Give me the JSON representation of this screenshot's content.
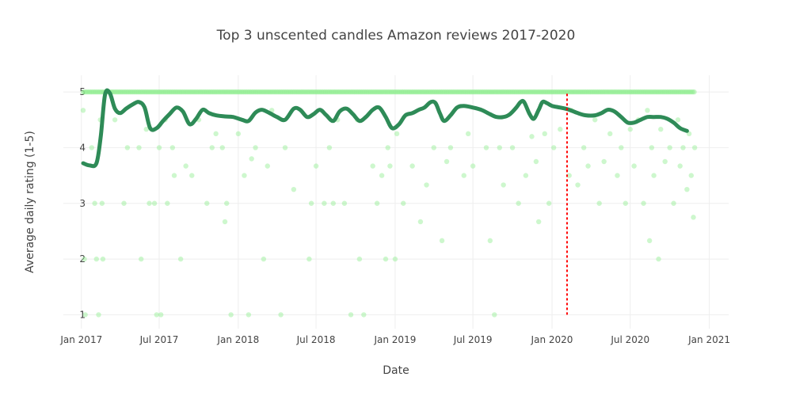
{
  "chart_data": {
    "type": "scatter",
    "title": "Top 3 unscented candles Amazon reviews 2017-2020",
    "xlabel": "Date",
    "ylabel": "Average daily rating (1-5)",
    "xlim": [
      "2016-11-20",
      "2021-02-15"
    ],
    "ylim": [
      0.75,
      5.3
    ],
    "grid": true,
    "x_ticks": [
      "2017-01-01",
      "2017-07-01",
      "2018-01-01",
      "2018-07-01",
      "2019-01-01",
      "2019-07-01",
      "2020-01-01",
      "2020-07-01",
      "2021-01-01"
    ],
    "x_tick_labels": [
      "Jan 2017",
      "Jul 2017",
      "Jan 2018",
      "Jul 2018",
      "Jan 2019",
      "Jul 2019",
      "Jan 2020",
      "Jul 2020",
      "Jan 2021"
    ],
    "y_ticks": [
      1,
      2,
      3,
      4,
      5
    ],
    "y_tick_labels": [
      "1",
      "2",
      "3",
      "4",
      "5"
    ],
    "colors": {
      "points": "#90ee90",
      "trend": "#2e8b57",
      "vline": "#ff0000",
      "text": "#444444"
    },
    "series": [
      {
        "type": "scatter",
        "x_range": [
          "2017-01-05",
          "2020-11-28"
        ],
        "y_levels": [
          1,
          2,
          3,
          4,
          5
        ],
        "note_density": "one point per daily average; many points at 5.0",
        "points": [
          [
            "2017-01-05",
            4.67
          ],
          [
            "2017-01-08",
            2
          ],
          [
            "2017-01-10",
            1
          ],
          [
            "2017-01-25",
            4
          ],
          [
            "2017-02-01",
            3
          ],
          [
            "2017-02-05",
            2
          ],
          [
            "2017-02-10",
            1
          ],
          [
            "2017-02-14",
            4.5
          ],
          [
            "2017-02-18",
            3
          ],
          [
            "2017-02-20",
            2
          ],
          [
            "2017-03-20",
            4.5
          ],
          [
            "2017-04-10",
            3
          ],
          [
            "2017-04-18",
            4
          ],
          [
            "2017-05-15",
            4
          ],
          [
            "2017-05-20",
            2
          ],
          [
            "2017-06-01",
            4.33
          ],
          [
            "2017-06-08",
            3
          ],
          [
            "2017-06-20",
            3
          ],
          [
            "2017-06-25",
            1
          ],
          [
            "2017-07-01",
            4
          ],
          [
            "2017-07-05",
            1
          ],
          [
            "2017-07-15",
            4.5
          ],
          [
            "2017-07-20",
            3
          ],
          [
            "2017-08-01",
            4
          ],
          [
            "2017-08-05",
            3.5
          ],
          [
            "2017-08-20",
            2
          ],
          [
            "2017-09-01",
            3.67
          ],
          [
            "2017-09-15",
            3.5
          ],
          [
            "2017-10-01",
            4.5
          ],
          [
            "2017-10-20",
            3
          ],
          [
            "2017-11-01",
            4
          ],
          [
            "2017-11-10",
            4.25
          ],
          [
            "2017-11-25",
            4
          ],
          [
            "2017-12-01",
            2.67
          ],
          [
            "2017-12-05",
            3
          ],
          [
            "2017-12-15",
            1
          ],
          [
            "2018-01-01",
            4.25
          ],
          [
            "2018-01-15",
            3.5
          ],
          [
            "2018-01-25",
            1
          ],
          [
            "2018-02-01",
            3.8
          ],
          [
            "2018-02-10",
            4
          ],
          [
            "2018-03-01",
            2
          ],
          [
            "2018-03-10",
            3.67
          ],
          [
            "2018-03-20",
            4.67
          ],
          [
            "2018-04-10",
            1
          ],
          [
            "2018-04-20",
            4
          ],
          [
            "2018-05-10",
            3.25
          ],
          [
            "2018-06-15",
            2
          ],
          [
            "2018-06-20",
            3
          ],
          [
            "2018-07-01",
            3.67
          ],
          [
            "2018-07-20",
            3
          ],
          [
            "2018-08-01",
            4
          ],
          [
            "2018-08-10",
            3
          ],
          [
            "2018-08-20",
            4.5
          ],
          [
            "2018-09-05",
            3
          ],
          [
            "2018-09-20",
            1
          ],
          [
            "2018-10-05",
            4.5
          ],
          [
            "2018-10-10",
            2
          ],
          [
            "2018-10-20",
            1
          ],
          [
            "2018-11-10",
            3.67
          ],
          [
            "2018-11-20",
            3
          ],
          [
            "2018-12-01",
            3.5
          ],
          [
            "2018-12-10",
            2
          ],
          [
            "2018-12-15",
            4
          ],
          [
            "2018-12-20",
            3.67
          ],
          [
            "2019-01-01",
            2
          ],
          [
            "2019-01-05",
            4.25
          ],
          [
            "2019-01-20",
            3
          ],
          [
            "2019-02-10",
            3.67
          ],
          [
            "2019-03-01",
            2.67
          ],
          [
            "2019-03-15",
            3.33
          ],
          [
            "2019-04-01",
            4
          ],
          [
            "2019-04-20",
            2.33
          ],
          [
            "2019-05-01",
            3.75
          ],
          [
            "2019-05-10",
            4
          ],
          [
            "2019-06-10",
            3.5
          ],
          [
            "2019-06-20",
            4.25
          ],
          [
            "2019-07-01",
            3.67
          ],
          [
            "2019-08-01",
            4
          ],
          [
            "2019-08-10",
            2.33
          ],
          [
            "2019-08-20",
            1
          ],
          [
            "2019-09-01",
            4
          ],
          [
            "2019-09-10",
            3.33
          ],
          [
            "2019-10-01",
            4
          ],
          [
            "2019-10-15",
            3
          ],
          [
            "2019-11-01",
            3.5
          ],
          [
            "2019-11-15",
            4.2
          ],
          [
            "2019-11-25",
            3.75
          ],
          [
            "2019-12-01",
            2.67
          ],
          [
            "2019-12-15",
            4.25
          ],
          [
            "2019-12-25",
            3
          ],
          [
            "2020-01-05",
            4
          ],
          [
            "2020-01-20",
            4.33
          ],
          [
            "2020-02-10",
            3.5
          ],
          [
            "2020-02-15",
            4.67
          ],
          [
            "2020-03-01",
            3.33
          ],
          [
            "2020-03-15",
            4
          ],
          [
            "2020-03-25",
            3.67
          ],
          [
            "2020-04-10",
            4.5
          ],
          [
            "2020-04-20",
            3
          ],
          [
            "2020-05-01",
            3.75
          ],
          [
            "2020-05-15",
            4.25
          ],
          [
            "2020-06-01",
            3.5
          ],
          [
            "2020-06-10",
            4
          ],
          [
            "2020-06-20",
            3
          ],
          [
            "2020-07-01",
            4.33
          ],
          [
            "2020-07-10",
            3.67
          ],
          [
            "2020-07-20",
            4.5
          ],
          [
            "2020-08-01",
            3
          ],
          [
            "2020-08-10",
            4.67
          ],
          [
            "2020-08-15",
            2.33
          ],
          [
            "2020-08-20",
            4
          ],
          [
            "2020-08-25",
            3.5
          ],
          [
            "2020-09-05",
            2
          ],
          [
            "2020-09-10",
            4.33
          ],
          [
            "2020-09-20",
            3.75
          ],
          [
            "2020-10-01",
            4
          ],
          [
            "2020-10-10",
            3
          ],
          [
            "2020-10-20",
            4.5
          ],
          [
            "2020-10-25",
            3.67
          ],
          [
            "2020-11-01",
            4
          ],
          [
            "2020-11-10",
            3.25
          ],
          [
            "2020-11-15",
            4.25
          ],
          [
            "2020-11-20",
            3.5
          ],
          [
            "2020-11-25",
            2.75
          ],
          [
            "2020-11-28",
            4
          ]
        ]
      },
      {
        "type": "line",
        "smoothed": true,
        "points": [
          [
            "2017-01-05",
            3.72
          ],
          [
            "2017-01-20",
            3.68
          ],
          [
            "2017-02-05",
            3.72
          ],
          [
            "2017-02-15",
            4.2
          ],
          [
            "2017-02-25",
            4.95
          ],
          [
            "2017-03-08",
            4.98
          ],
          [
            "2017-03-20",
            4.7
          ],
          [
            "2017-04-01",
            4.62
          ],
          [
            "2017-04-15",
            4.7
          ],
          [
            "2017-05-01",
            4.78
          ],
          [
            "2017-05-15",
            4.82
          ],
          [
            "2017-05-28",
            4.72
          ],
          [
            "2017-06-10",
            4.35
          ],
          [
            "2017-06-25",
            4.35
          ],
          [
            "2017-07-10",
            4.48
          ],
          [
            "2017-07-25",
            4.6
          ],
          [
            "2017-08-10",
            4.72
          ],
          [
            "2017-08-25",
            4.65
          ],
          [
            "2017-09-10",
            4.42
          ],
          [
            "2017-09-25",
            4.52
          ],
          [
            "2017-10-10",
            4.68
          ],
          [
            "2017-10-25",
            4.62
          ],
          [
            "2017-11-10",
            4.58
          ],
          [
            "2017-12-01",
            4.56
          ],
          [
            "2017-12-20",
            4.55
          ],
          [
            "2018-01-10",
            4.5
          ],
          [
            "2018-01-25",
            4.48
          ],
          [
            "2018-02-10",
            4.63
          ],
          [
            "2018-02-25",
            4.68
          ],
          [
            "2018-03-15",
            4.62
          ],
          [
            "2018-04-01",
            4.55
          ],
          [
            "2018-04-20",
            4.5
          ],
          [
            "2018-05-10",
            4.7
          ],
          [
            "2018-05-25",
            4.68
          ],
          [
            "2018-06-10",
            4.55
          ],
          [
            "2018-06-25",
            4.6
          ],
          [
            "2018-07-10",
            4.68
          ],
          [
            "2018-07-25",
            4.58
          ],
          [
            "2018-08-10",
            4.48
          ],
          [
            "2018-08-25",
            4.65
          ],
          [
            "2018-09-10",
            4.7
          ],
          [
            "2018-09-25",
            4.6
          ],
          [
            "2018-10-10",
            4.48
          ],
          [
            "2018-10-25",
            4.55
          ],
          [
            "2018-11-10",
            4.68
          ],
          [
            "2018-11-25",
            4.72
          ],
          [
            "2018-12-10",
            4.55
          ],
          [
            "2018-12-25",
            4.35
          ],
          [
            "2019-01-10",
            4.42
          ],
          [
            "2019-01-25",
            4.58
          ],
          [
            "2019-02-10",
            4.62
          ],
          [
            "2019-02-25",
            4.68
          ],
          [
            "2019-03-10",
            4.72
          ],
          [
            "2019-03-25",
            4.82
          ],
          [
            "2019-04-05",
            4.8
          ],
          [
            "2019-04-15",
            4.62
          ],
          [
            "2019-04-25",
            4.48
          ],
          [
            "2019-05-10",
            4.58
          ],
          [
            "2019-05-25",
            4.72
          ],
          [
            "2019-06-10",
            4.75
          ],
          [
            "2019-07-01",
            4.72
          ],
          [
            "2019-07-20",
            4.68
          ],
          [
            "2019-08-10",
            4.6
          ],
          [
            "2019-08-25",
            4.55
          ],
          [
            "2019-09-10",
            4.55
          ],
          [
            "2019-09-25",
            4.6
          ],
          [
            "2019-10-10",
            4.72
          ],
          [
            "2019-10-20",
            4.82
          ],
          [
            "2019-10-28",
            4.82
          ],
          [
            "2019-11-10",
            4.6
          ],
          [
            "2019-11-20",
            4.52
          ],
          [
            "2019-12-01",
            4.68
          ],
          [
            "2019-12-10",
            4.82
          ],
          [
            "2019-12-20",
            4.8
          ],
          [
            "2020-01-01",
            4.75
          ],
          [
            "2020-01-20",
            4.72
          ],
          [
            "2020-02-10",
            4.68
          ],
          [
            "2020-03-01",
            4.62
          ],
          [
            "2020-03-20",
            4.58
          ],
          [
            "2020-04-10",
            4.58
          ],
          [
            "2020-04-25",
            4.62
          ],
          [
            "2020-05-10",
            4.68
          ],
          [
            "2020-05-25",
            4.65
          ],
          [
            "2020-06-10",
            4.55
          ],
          [
            "2020-06-25",
            4.45
          ],
          [
            "2020-07-10",
            4.45
          ],
          [
            "2020-07-25",
            4.5
          ],
          [
            "2020-08-10",
            4.55
          ],
          [
            "2020-08-25",
            4.55
          ],
          [
            "2020-09-10",
            4.55
          ],
          [
            "2020-09-25",
            4.52
          ],
          [
            "2020-10-10",
            4.45
          ],
          [
            "2020-10-25",
            4.35
          ],
          [
            "2020-11-10",
            4.3
          ]
        ]
      }
    ],
    "vline": {
      "x": "2020-02-05",
      "y0": 1,
      "y1": 5,
      "style": "dotted"
    }
  }
}
